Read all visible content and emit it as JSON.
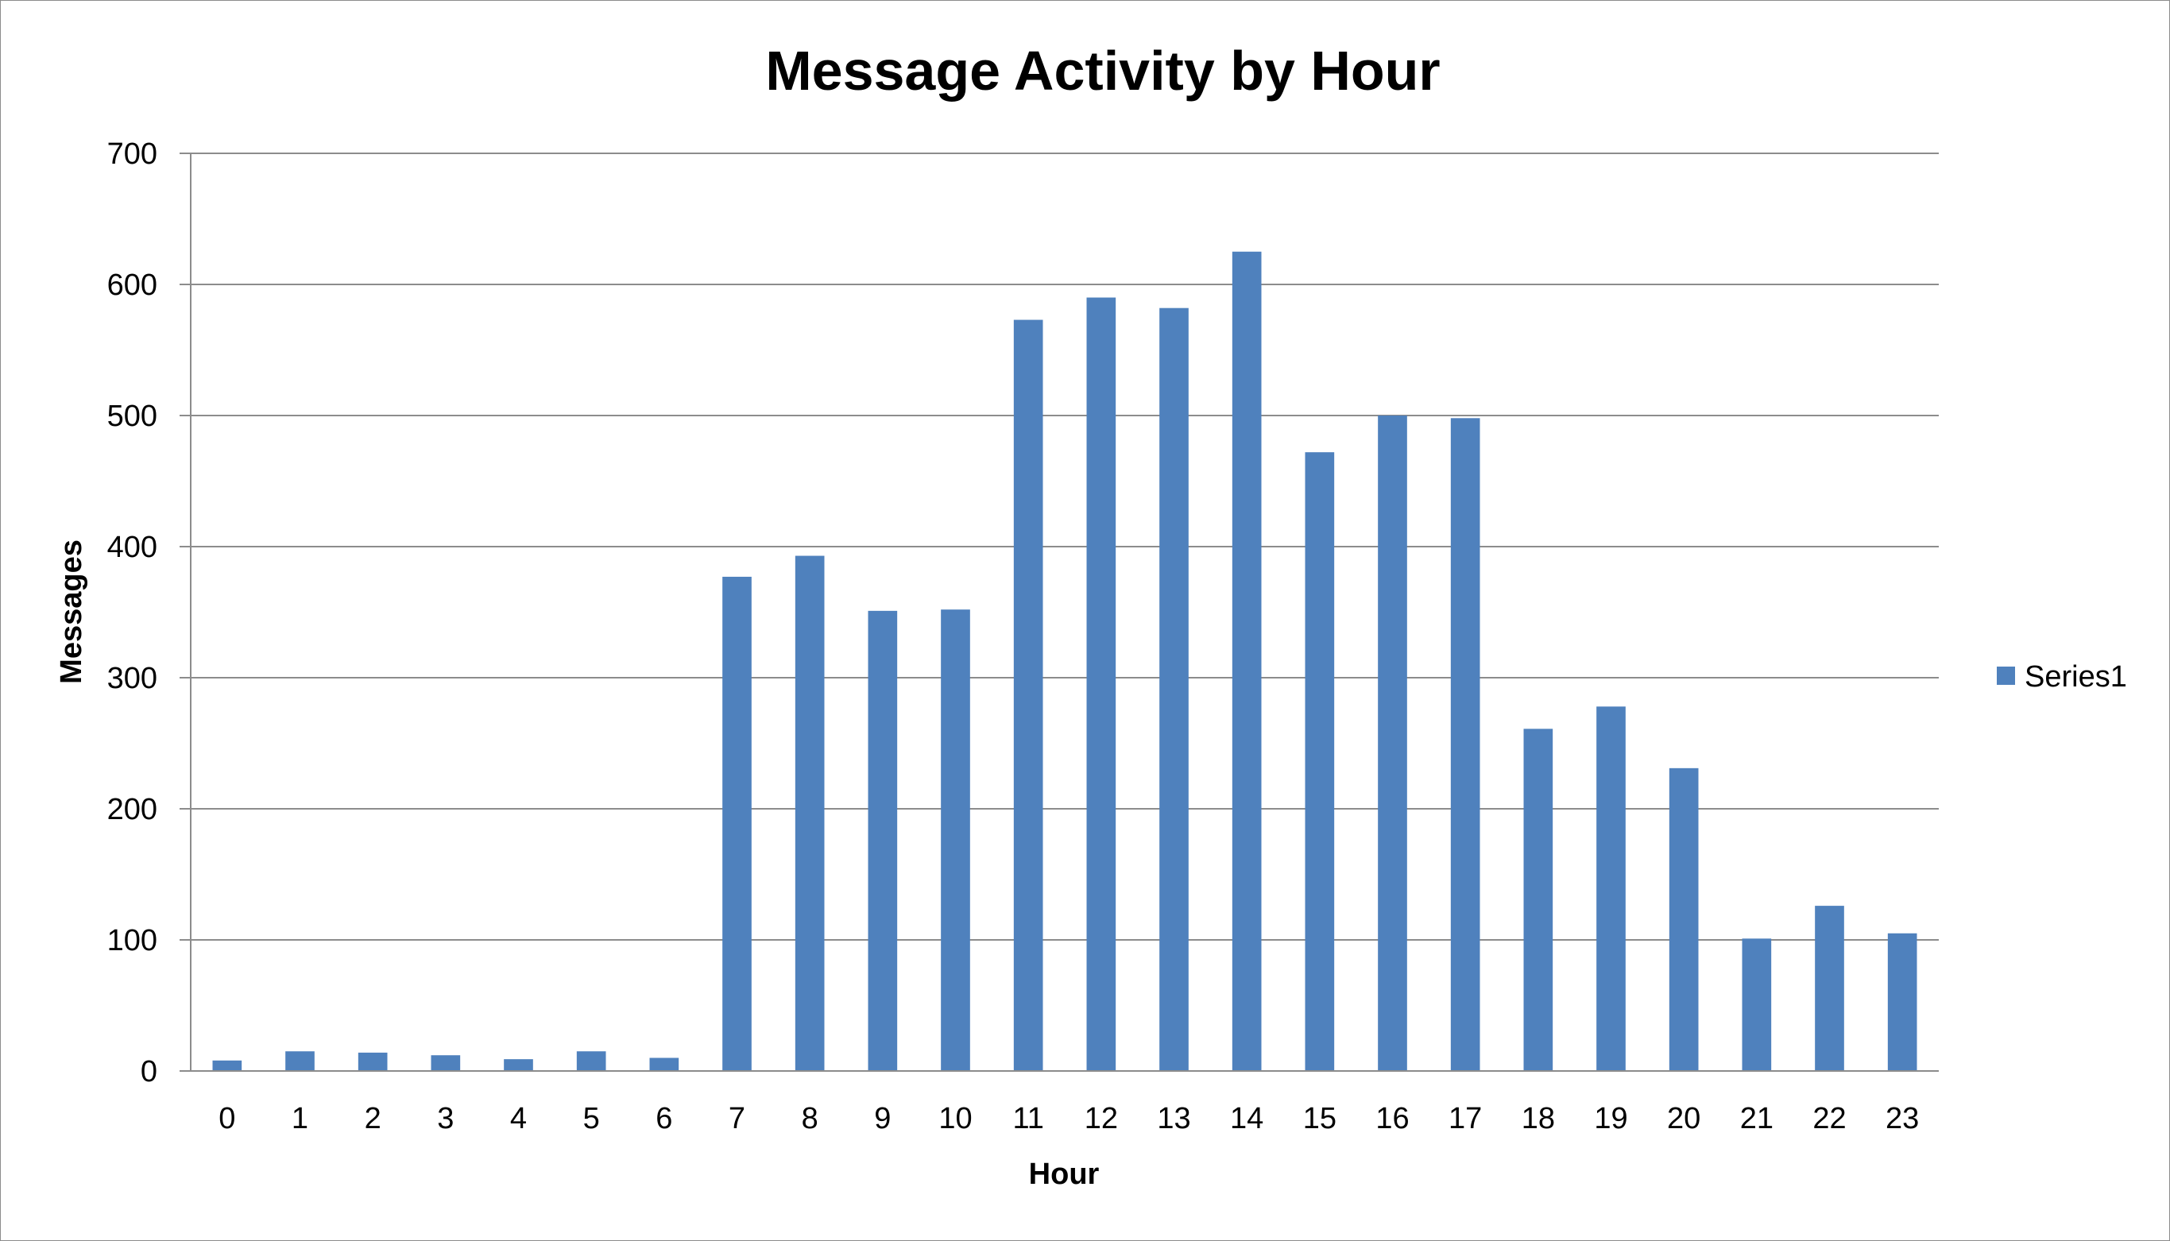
{
  "chart_data": {
    "type": "bar",
    "title": "Message Activity by Hour",
    "xlabel": "Hour",
    "ylabel": "Messages",
    "ylim": [
      0,
      700
    ],
    "yticks": [
      0,
      100,
      200,
      300,
      400,
      500,
      600,
      700
    ],
    "grid": true,
    "legend_position": "right",
    "categories": [
      "0",
      "1",
      "2",
      "3",
      "4",
      "5",
      "6",
      "7",
      "8",
      "9",
      "10",
      "11",
      "12",
      "13",
      "14",
      "15",
      "16",
      "17",
      "18",
      "19",
      "20",
      "21",
      "22",
      "23"
    ],
    "series": [
      {
        "name": "Series1",
        "color": "#4F81BD",
        "values": [
          8,
          15,
          14,
          12,
          9,
          15,
          10,
          377,
          393,
          351,
          352,
          573,
          590,
          582,
          625,
          472,
          500,
          498,
          261,
          278,
          231,
          101,
          126,
          105
        ]
      }
    ]
  }
}
